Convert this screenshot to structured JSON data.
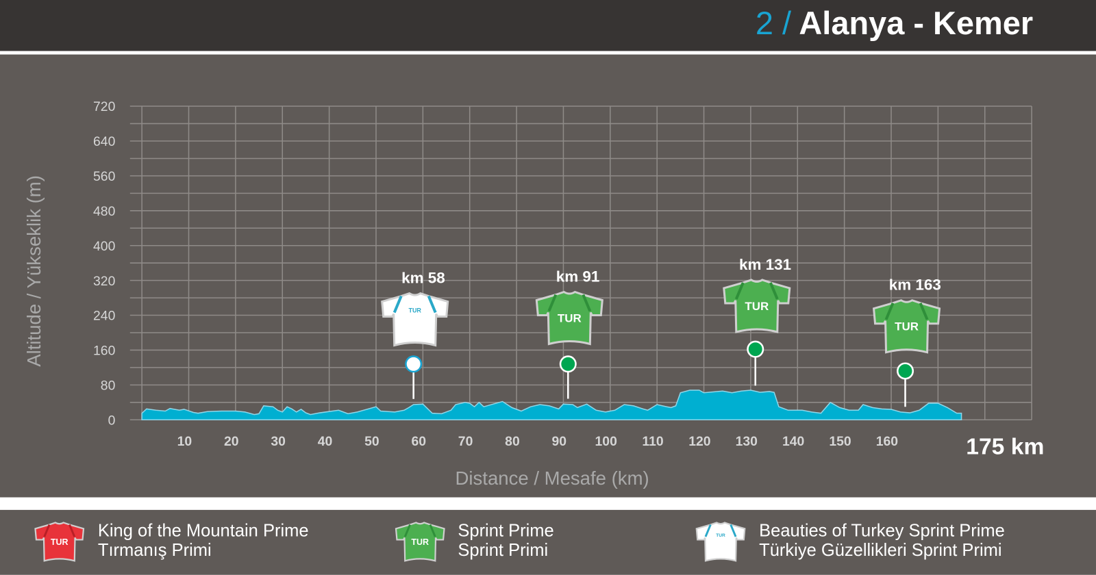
{
  "header": {
    "stage_number": "2 /",
    "stage_name": "Alanya - Kemer"
  },
  "legend": [
    {
      "en": "King of the Mountain Prime",
      "tr": "Tırmanış Primi",
      "jersey": "red",
      "color": "#e8333a"
    },
    {
      "en": "Sprint Prime",
      "tr": "Sprint Primi",
      "jersey": "green",
      "color": "#4caf50"
    },
    {
      "en": "Beauties of Turkey Sprint Prime",
      "tr": "Türkiye Güzellikleri Sprint Primi",
      "jersey": "white",
      "color": "#ffffff"
    }
  ],
  "chart_data": {
    "type": "area",
    "xlabel": "Distance / Mesafe (km)",
    "ylabel": "Altitude / Yükseklik (m)",
    "total_distance_label": "175 km",
    "xlim": [
      0,
      190
    ],
    "ylim": [
      0,
      720
    ],
    "x_ticks": [
      10,
      20,
      30,
      40,
      50,
      60,
      70,
      80,
      90,
      100,
      110,
      120,
      130,
      140,
      150,
      160
    ],
    "y_ticks": [
      0,
      80,
      160,
      240,
      320,
      400,
      480,
      560,
      640,
      720
    ],
    "grid": true,
    "fill_color": "#00afd1",
    "profile": [
      [
        0,
        15
      ],
      [
        1,
        25
      ],
      [
        3,
        22
      ],
      [
        5,
        20
      ],
      [
        6,
        26
      ],
      [
        8,
        22
      ],
      [
        9,
        24
      ],
      [
        11,
        17
      ],
      [
        12,
        15
      ],
      [
        14,
        19
      ],
      [
        17,
        20
      ],
      [
        20,
        20
      ],
      [
        22,
        18
      ],
      [
        24,
        12
      ],
      [
        25,
        14
      ],
      [
        26,
        32
      ],
      [
        28,
        30
      ],
      [
        29,
        22
      ],
      [
        30,
        18
      ],
      [
        31,
        30
      ],
      [
        32,
        25
      ],
      [
        33,
        18
      ],
      [
        34,
        24
      ],
      [
        35,
        16
      ],
      [
        36,
        12
      ],
      [
        38,
        16
      ],
      [
        42,
        22
      ],
      [
        44,
        14
      ],
      [
        46,
        18
      ],
      [
        50,
        30
      ],
      [
        51,
        20
      ],
      [
        54,
        18
      ],
      [
        56,
        22
      ],
      [
        57,
        28
      ],
      [
        58,
        35
      ],
      [
        60,
        36
      ],
      [
        62,
        15
      ],
      [
        64,
        14
      ],
      [
        66,
        22
      ],
      [
        67,
        35
      ],
      [
        69,
        40
      ],
      [
        70,
        38
      ],
      [
        71,
        30
      ],
      [
        72,
        40
      ],
      [
        73,
        30
      ],
      [
        75,
        36
      ],
      [
        77,
        42
      ],
      [
        79,
        28
      ],
      [
        81,
        20
      ],
      [
        83,
        30
      ],
      [
        85,
        35
      ],
      [
        87,
        32
      ],
      [
        89,
        25
      ],
      [
        90,
        36
      ],
      [
        92,
        35
      ],
      [
        93,
        28
      ],
      [
        95,
        36
      ],
      [
        97,
        22
      ],
      [
        99,
        18
      ],
      [
        101,
        22
      ],
      [
        103,
        35
      ],
      [
        105,
        32
      ],
      [
        107,
        25
      ],
      [
        108,
        22
      ],
      [
        110,
        35
      ],
      [
        112,
        30
      ],
      [
        113,
        28
      ],
      [
        114,
        32
      ],
      [
        115,
        62
      ],
      [
        117,
        68
      ],
      [
        119,
        68
      ],
      [
        120,
        62
      ],
      [
        122,
        64
      ],
      [
        124,
        66
      ],
      [
        126,
        62
      ],
      [
        128,
        66
      ],
      [
        130,
        68
      ],
      [
        132,
        63
      ],
      [
        134,
        65
      ],
      [
        135,
        63
      ],
      [
        136,
        30
      ],
      [
        138,
        22
      ],
      [
        141,
        22
      ],
      [
        143,
        18
      ],
      [
        145,
        15
      ],
      [
        147,
        40
      ],
      [
        149,
        28
      ],
      [
        151,
        22
      ],
      [
        153,
        22
      ],
      [
        154,
        35
      ],
      [
        156,
        28
      ],
      [
        158,
        25
      ],
      [
        160,
        24
      ],
      [
        162,
        18
      ],
      [
        164,
        16
      ],
      [
        166,
        22
      ],
      [
        168,
        38
      ],
      [
        170,
        38
      ],
      [
        172,
        28
      ],
      [
        174,
        15
      ],
      [
        175,
        15
      ]
    ],
    "markers": [
      {
        "km": 58,
        "label": "km 58",
        "type": "white"
      },
      {
        "km": 91,
        "label": "km 91",
        "type": "green"
      },
      {
        "km": 131,
        "label": "km 131",
        "type": "green"
      },
      {
        "km": 163,
        "label": "km 163",
        "type": "green"
      }
    ]
  }
}
